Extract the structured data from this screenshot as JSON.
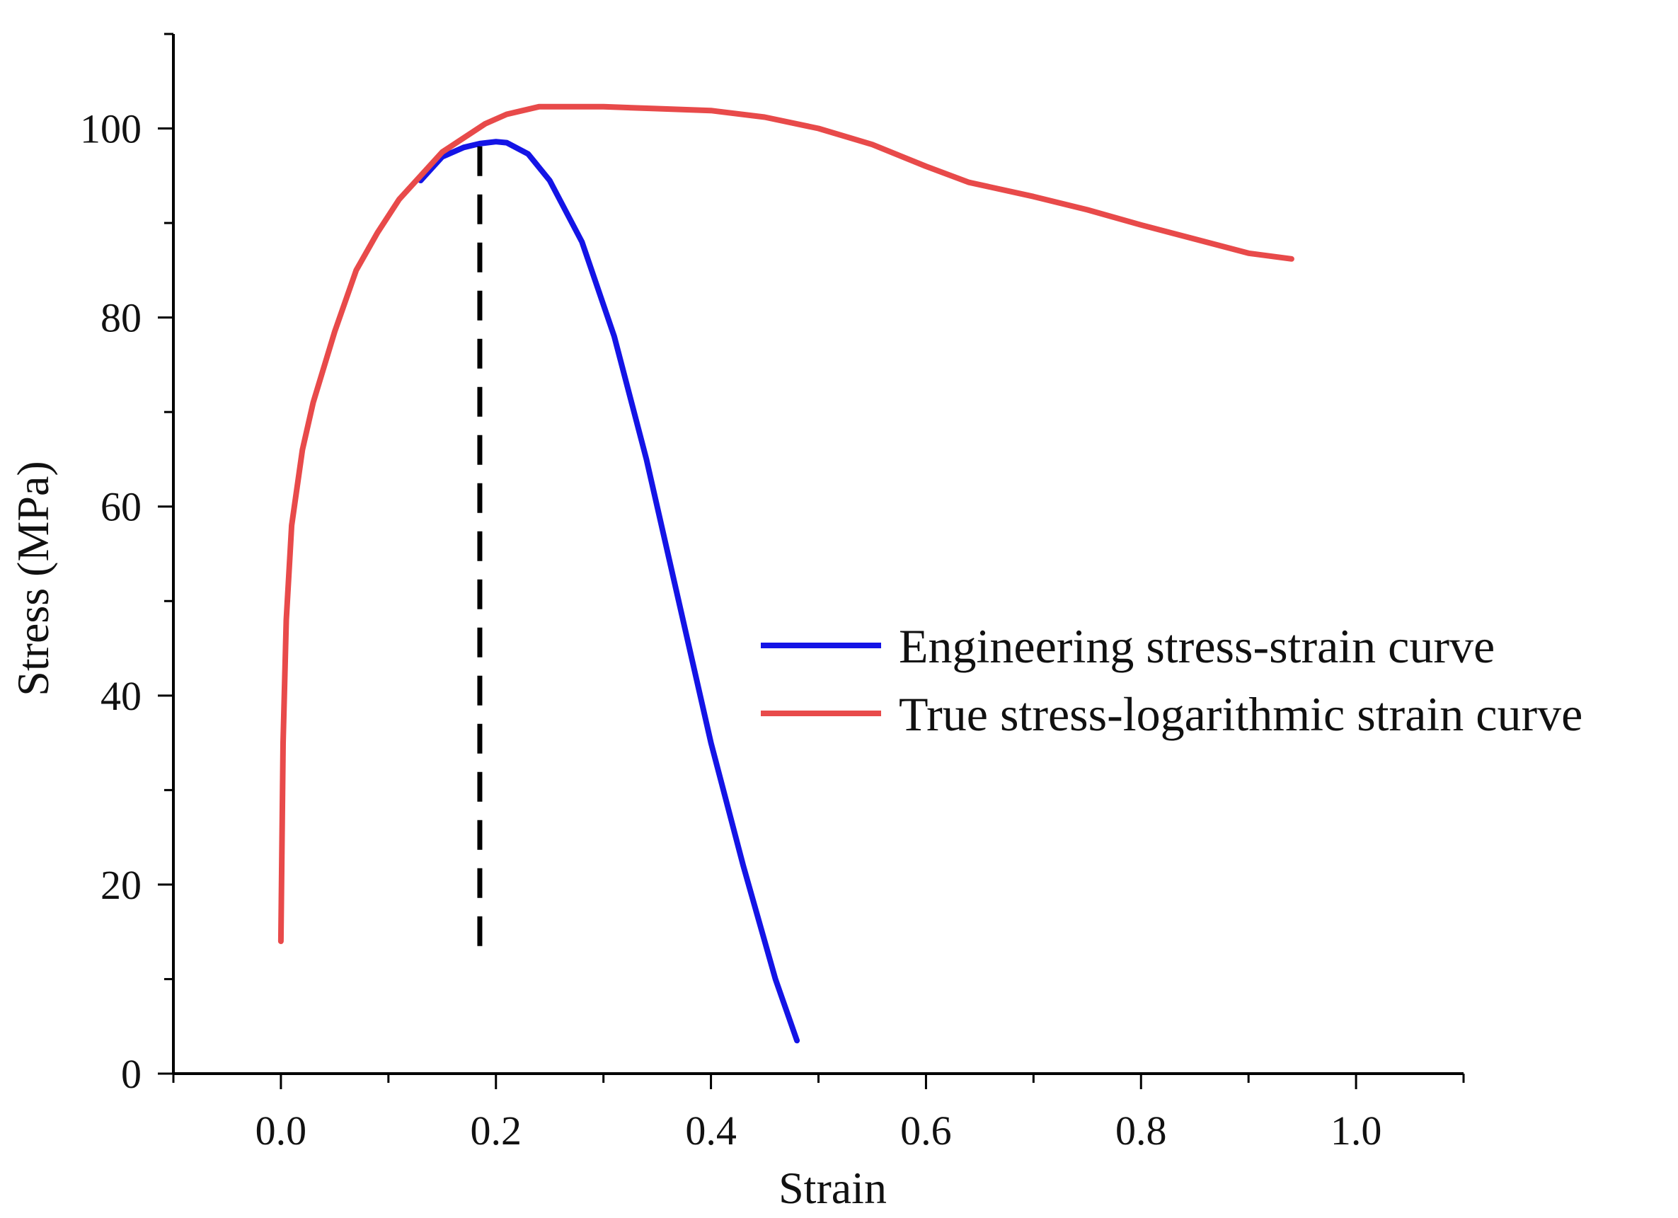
{
  "chart_data": {
    "type": "line",
    "title": "",
    "xlabel": "Strain",
    "ylabel": "Stress (MPa)",
    "xlim": [
      -0.1,
      1.1
    ],
    "ylim": [
      0,
      110
    ],
    "xticks": [
      0.0,
      0.2,
      0.4,
      0.6,
      0.8,
      1.0
    ],
    "xtick_labels": [
      "0.0",
      "0.2",
      "0.4",
      "0.6",
      "0.8",
      "1.0"
    ],
    "yticks": [
      0,
      20,
      40,
      60,
      80,
      100
    ],
    "ytick_labels": [
      "0",
      "20",
      "40",
      "60",
      "80",
      "100"
    ],
    "grid": false,
    "legend_position": "center-right",
    "series": [
      {
        "name": "Engineering stress-strain curve",
        "color": "#1414e6",
        "x": [
          0.13,
          0.15,
          0.17,
          0.185,
          0.2,
          0.21,
          0.23,
          0.25,
          0.28,
          0.31,
          0.34,
          0.37,
          0.4,
          0.43,
          0.46,
          0.48
        ],
        "y": [
          94.5,
          97.0,
          98.0,
          98.4,
          98.6,
          98.5,
          97.3,
          94.5,
          88.0,
          78.0,
          65.0,
          50.0,
          35.0,
          22.0,
          10.0,
          3.5
        ]
      },
      {
        "name": "True stress-logarithmic strain curve",
        "color": "#e84a4a",
        "x": [
          0.0,
          0.002,
          0.005,
          0.01,
          0.02,
          0.03,
          0.05,
          0.07,
          0.09,
          0.11,
          0.13,
          0.15,
          0.17,
          0.19,
          0.21,
          0.24,
          0.3,
          0.35,
          0.4,
          0.45,
          0.5,
          0.55,
          0.6,
          0.64,
          0.7,
          0.75,
          0.8,
          0.85,
          0.9,
          0.94
        ],
        "y": [
          14.0,
          35.0,
          48.0,
          58.0,
          66.0,
          71.0,
          78.5,
          85.0,
          89.0,
          92.5,
          95.0,
          97.5,
          99.0,
          100.5,
          101.5,
          102.3,
          102.3,
          102.1,
          101.9,
          101.2,
          100.0,
          98.3,
          96.0,
          94.3,
          92.8,
          91.4,
          89.8,
          88.3,
          86.8,
          86.2
        ]
      }
    ],
    "reference_line": {
      "style": "dashed",
      "x": 0.185,
      "y_range": [
        13.5,
        98.4
      ]
    }
  }
}
